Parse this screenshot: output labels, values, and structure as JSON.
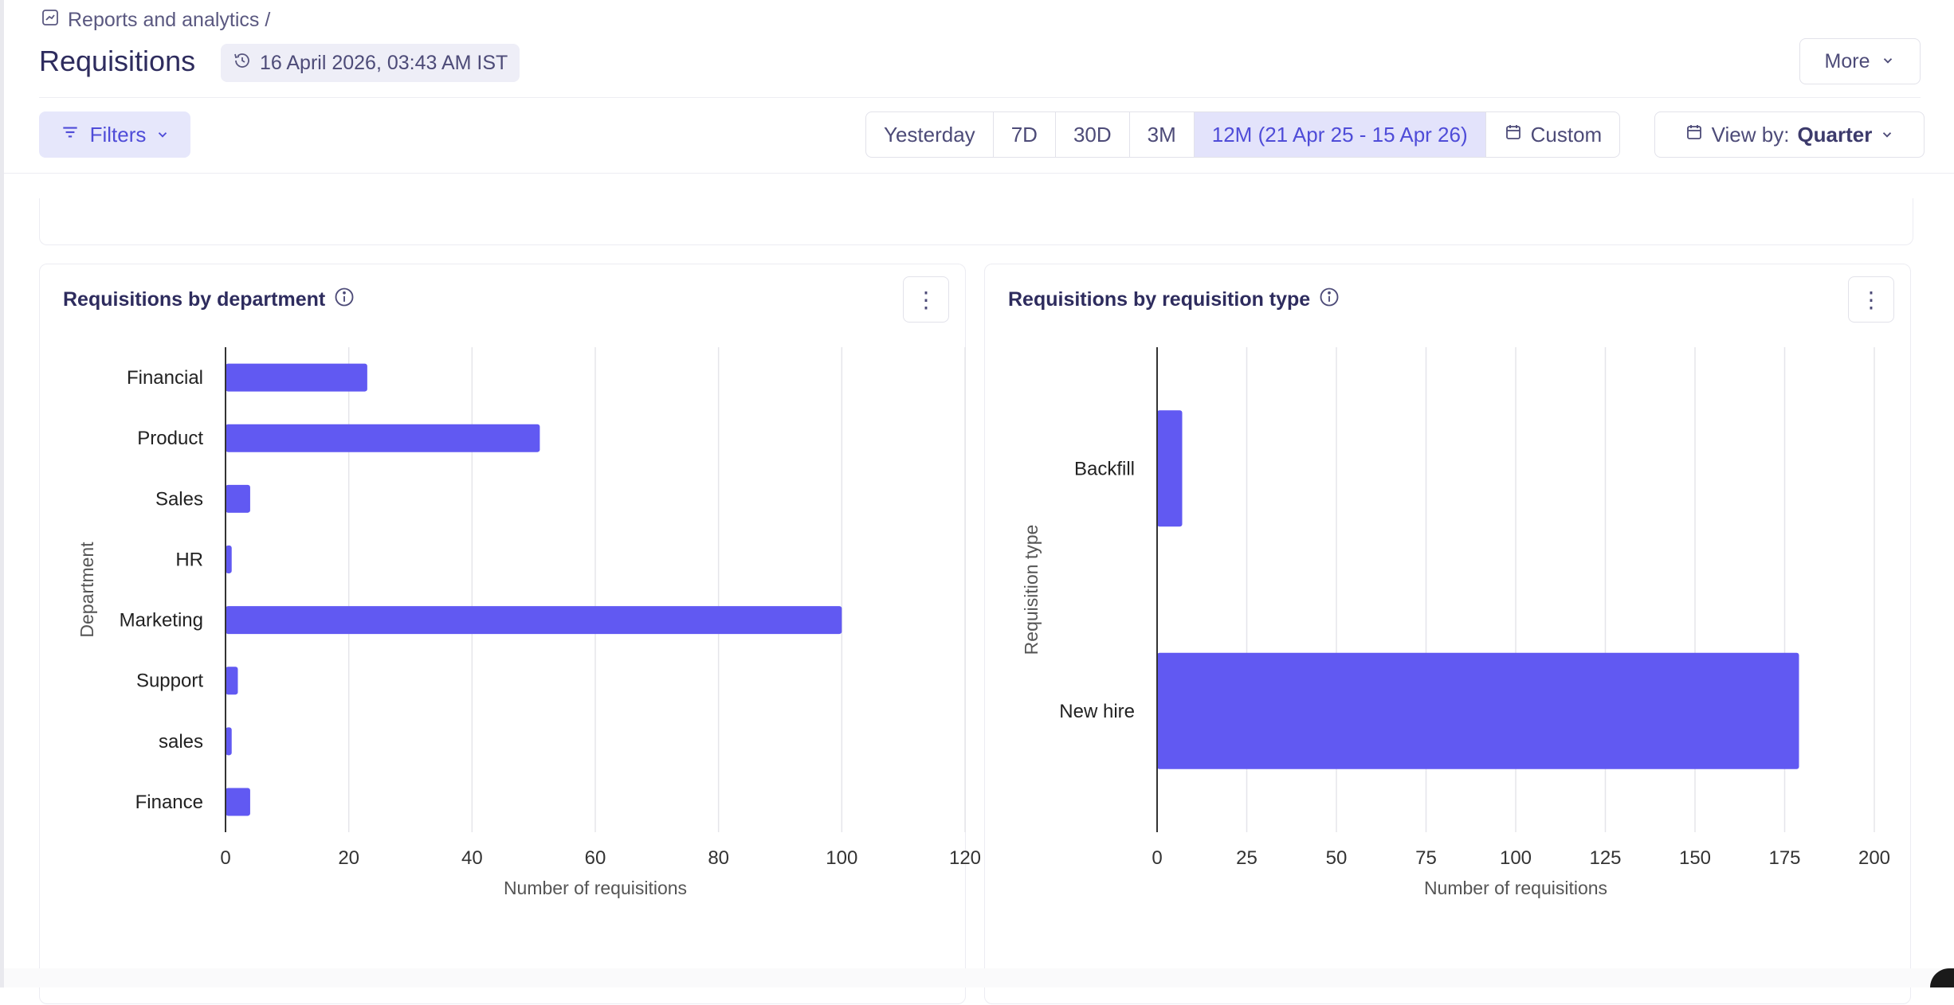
{
  "breadcrumb": {
    "label": "Reports and analytics /"
  },
  "page": {
    "title": "Requisitions",
    "timestamp": "16 April 2026, 03:43 AM IST"
  },
  "header_actions": {
    "more_label": "More"
  },
  "toolbar": {
    "filters_label": "Filters",
    "ranges": [
      {
        "label": "Yesterday",
        "active": false
      },
      {
        "label": "7D",
        "active": false
      },
      {
        "label": "30D",
        "active": false
      },
      {
        "label": "3M",
        "active": false
      },
      {
        "label": "12M (21 Apr 25 - 15 Apr 26)",
        "active": true
      },
      {
        "label": "Custom",
        "active": false
      }
    ],
    "viewby_prefix": "View by:",
    "viewby_value": "Quarter"
  },
  "colors": {
    "bar": "#6159f2",
    "accent": "#4f4cd8",
    "grid": "#e5e5ea",
    "axis": "#333333"
  },
  "chart_data": [
    {
      "type": "bar",
      "orientation": "horizontal",
      "title": "Requisitions by department",
      "xlabel": "Number of requisitions",
      "ylabel": "Department",
      "categories": [
        "Financial",
        "Product",
        "Sales",
        "HR",
        "Marketing",
        "Support",
        "sales",
        "Finance"
      ],
      "values": [
        23,
        51,
        4,
        1,
        100,
        2,
        1,
        4
      ],
      "xlim": [
        0,
        120
      ],
      "xticks": [
        0,
        20,
        40,
        60,
        80,
        100,
        120
      ],
      "grid": true
    },
    {
      "type": "bar",
      "orientation": "horizontal",
      "title": "Requisitions by requisition type",
      "xlabel": "Number of requisitions",
      "ylabel": "Requisition type",
      "categories": [
        "Backfill",
        "New hire"
      ],
      "values": [
        7,
        179
      ],
      "xlim": [
        0,
        200
      ],
      "xticks": [
        0,
        25,
        50,
        75,
        100,
        125,
        150,
        175,
        200
      ],
      "grid": true
    }
  ]
}
